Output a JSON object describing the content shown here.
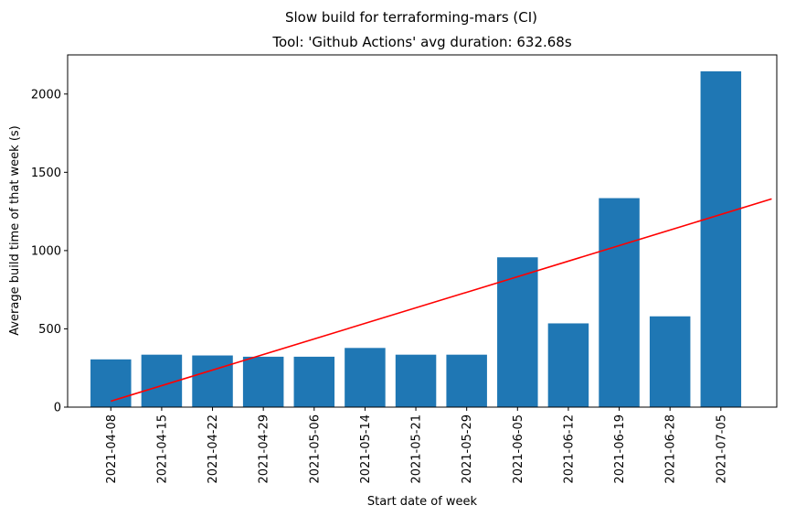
{
  "chart_data": {
    "type": "bar",
    "suptitle": "Slow build for terraforming-mars (CI)",
    "title": "Tool: 'Github Actions' avg duration: 632.68s",
    "xlabel": "Start date of week",
    "ylabel": "Average build time of that week (s)",
    "categories": [
      "2021-04-08",
      "2021-04-15",
      "2021-04-22",
      "2021-04-29",
      "2021-05-06",
      "2021-05-14",
      "2021-05-21",
      "2021-05-29",
      "2021-06-05",
      "2021-06-12",
      "2021-06-19",
      "2021-06-28",
      "2021-07-05"
    ],
    "values": [
      305,
      335,
      330,
      322,
      322,
      378,
      335,
      335,
      957,
      535,
      1335,
      580,
      2145
    ],
    "yticks": [
      0,
      500,
      1000,
      1500,
      2000
    ],
    "ylim": [
      0,
      2250
    ],
    "bar_color": "#1f77b4",
    "trend_line": {
      "color": "#ff0000",
      "x_start": "2021-04-08",
      "y_start": 38,
      "y_end": 1330
    },
    "grid": false,
    "legend": "none"
  }
}
